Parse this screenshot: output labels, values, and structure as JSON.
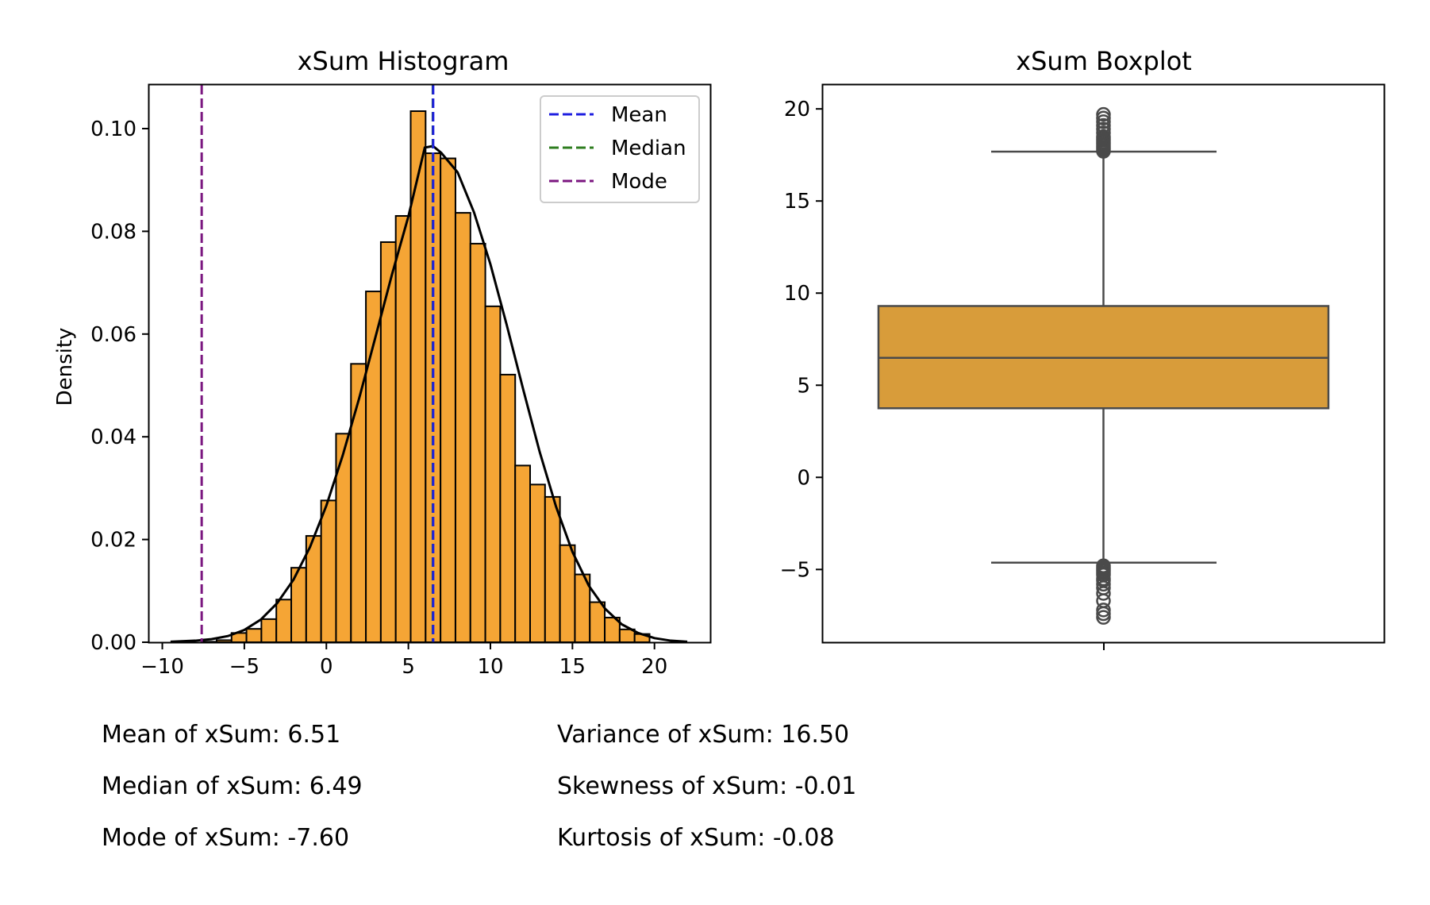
{
  "chart_data": [
    {
      "type": "bar",
      "title": "xSum Histogram",
      "xlabel": "",
      "ylabel": "Density",
      "xlim": [
        -10.8,
        23.4
      ],
      "ylim": [
        0,
        0.1085
      ],
      "xticks": [
        -10,
        -5,
        0,
        5,
        10,
        15,
        20
      ],
      "xtick_labels": [
        "−10",
        "−5",
        "0",
        "5",
        "10",
        "15",
        "20"
      ],
      "yticks": [
        0,
        0.02,
        0.04,
        0.06,
        0.08,
        0.1
      ],
      "ytick_labels": [
        "0.00",
        "0.02",
        "0.04",
        "0.06",
        "0.08",
        "0.10"
      ],
      "grid": false,
      "legend_position": "top-right",
      "bin_edges": [
        -7.6,
        -6.69,
        -5.78,
        -4.87,
        -3.96,
        -3.05,
        -2.14,
        -1.23,
        -0.32,
        0.59,
        1.5,
        2.41,
        3.32,
        4.23,
        5.14,
        6.05,
        6.96,
        7.87,
        8.78,
        9.69,
        10.6,
        11.51,
        12.42,
        13.33,
        14.24,
        15.15,
        16.06,
        16.97,
        17.88,
        18.79,
        19.7
      ],
      "densities": [
        0.0001,
        0.0004,
        0.0018,
        0.0026,
        0.0045,
        0.0083,
        0.0145,
        0.0207,
        0.0276,
        0.0406,
        0.0542,
        0.0683,
        0.0779,
        0.083,
        0.1034,
        0.0952,
        0.0942,
        0.0836,
        0.0776,
        0.0654,
        0.0521,
        0.0344,
        0.0307,
        0.0283,
        0.0189,
        0.0132,
        0.0078,
        0.0048,
        0.0025,
        0.0016
      ],
      "kde": {
        "x": [
          -9.5,
          -8,
          -7,
          -6,
          -5,
          -4,
          -3,
          -2,
          -1,
          0,
          1,
          2,
          3,
          4,
          5,
          6,
          6.5,
          7,
          8,
          9,
          10,
          11,
          12,
          13,
          14,
          15,
          16,
          17,
          18,
          19,
          20,
          21,
          22
        ],
        "y": [
          0.0001,
          0.0003,
          0.0006,
          0.0012,
          0.0024,
          0.0044,
          0.0076,
          0.0122,
          0.0185,
          0.0266,
          0.0364,
          0.0475,
          0.0595,
          0.0716,
          0.0829,
          0.0963,
          0.0966,
          0.0953,
          0.0915,
          0.0837,
          0.0736,
          0.0617,
          0.0492,
          0.0371,
          0.0264,
          0.0176,
          0.011,
          0.0065,
          0.0035,
          0.0018,
          0.0008,
          0.0003,
          0.0001
        ]
      },
      "vlines": [
        {
          "name": "Mean",
          "x": 6.51,
          "color": "#1f1fe0"
        },
        {
          "name": "Median",
          "x": 6.49,
          "color": "#2e7d1f"
        },
        {
          "name": "Mode",
          "x": -7.6,
          "color": "#7b1780"
        }
      ],
      "colors": {
        "bar_fill": "#f5a535",
        "bar_edge": "#000000",
        "kde": "#000000"
      }
    },
    {
      "type": "boxplot",
      "title": "xSum Boxplot",
      "ylim": [
        -8.95,
        21.3
      ],
      "yticks": [
        -5,
        0,
        5,
        10,
        15,
        20
      ],
      "ytick_labels": [
        "−5",
        "0",
        "5",
        "10",
        "15",
        "20"
      ],
      "grid": false,
      "q1": 3.75,
      "median": 6.49,
      "q3": 9.3,
      "whisker_low": -4.63,
      "whisker_high": 17.68,
      "outliers_high": [
        17.7,
        17.8,
        17.9,
        18.0,
        18.1,
        18.2,
        18.3,
        18.4,
        18.5,
        18.7,
        18.9,
        19.1,
        19.3,
        19.5,
        19.7
      ],
      "outliers_low": [
        -4.8,
        -4.9,
        -5.0,
        -5.1,
        -5.2,
        -5.3,
        -5.5,
        -5.6,
        -5.8,
        -6.0,
        -6.3,
        -6.7,
        -7.2,
        -7.4,
        -7.6
      ],
      "colors": {
        "box_fill": "#d89c3a",
        "line": "#4a4a4a"
      }
    }
  ],
  "stats": {
    "mean": "Mean of xSum: 6.51",
    "median": "Median of xSum: 6.49",
    "mode": "Mode of xSum: -7.60",
    "variance": "Variance of xSum: 16.50",
    "skewness": "Skewness of xSum: -0.01",
    "kurtosis": "Kurtosis of xSum: -0.08"
  }
}
